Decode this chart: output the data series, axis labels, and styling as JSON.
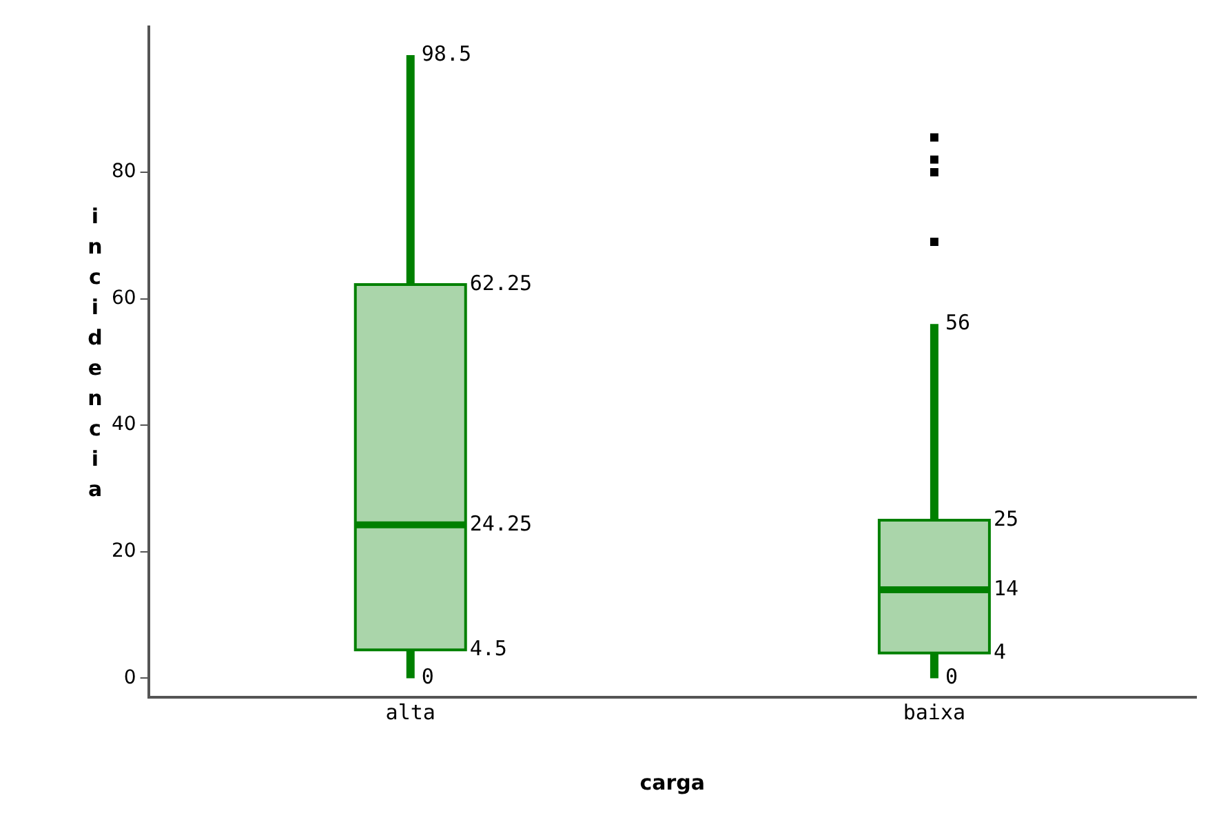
{
  "chart_data": {
    "type": "box",
    "xlabel": "carga",
    "ylabel": "incidencia",
    "categories": [
      "alta",
      "baixa"
    ],
    "series": [
      {
        "color": "#008000",
        "boxes": [
          {
            "low": 0,
            "q1": 4.5,
            "median": 24.25,
            "q3": 62.25,
            "high": 98.5
          },
          {
            "low": 0,
            "q1": 4,
            "median": 14,
            "q3": 25,
            "high": 56,
            "outliers": [
              69,
              80,
              82,
              85.5
            ]
          }
        ]
      }
    ],
    "ylim": [
      -3,
      103
    ],
    "yticks": [
      0,
      20,
      40,
      60,
      80
    ],
    "grid": false,
    "legend": false,
    "marker": "square",
    "annotations": [
      {
        "text": "98.5",
        "x": "alta",
        "y": 98.5
      },
      {
        "text": "62.25",
        "x": "alta",
        "y": 62.25
      },
      {
        "text": "24.25",
        "x": "alta",
        "y": 24.25
      },
      {
        "text": "4.5",
        "x": "alta",
        "y": 4.5
      },
      {
        "text": "0",
        "x": "alta",
        "y": 0
      },
      {
        "text": "56",
        "x": "baixa",
        "y": 56
      },
      {
        "text": "25",
        "x": "baixa",
        "y": 25
      },
      {
        "text": "14",
        "x": "baixa",
        "y": 14
      },
      {
        "text": "4",
        "x": "baixa",
        "y": 4
      },
      {
        "text": "0",
        "x": "baixa",
        "y": 0
      }
    ]
  }
}
